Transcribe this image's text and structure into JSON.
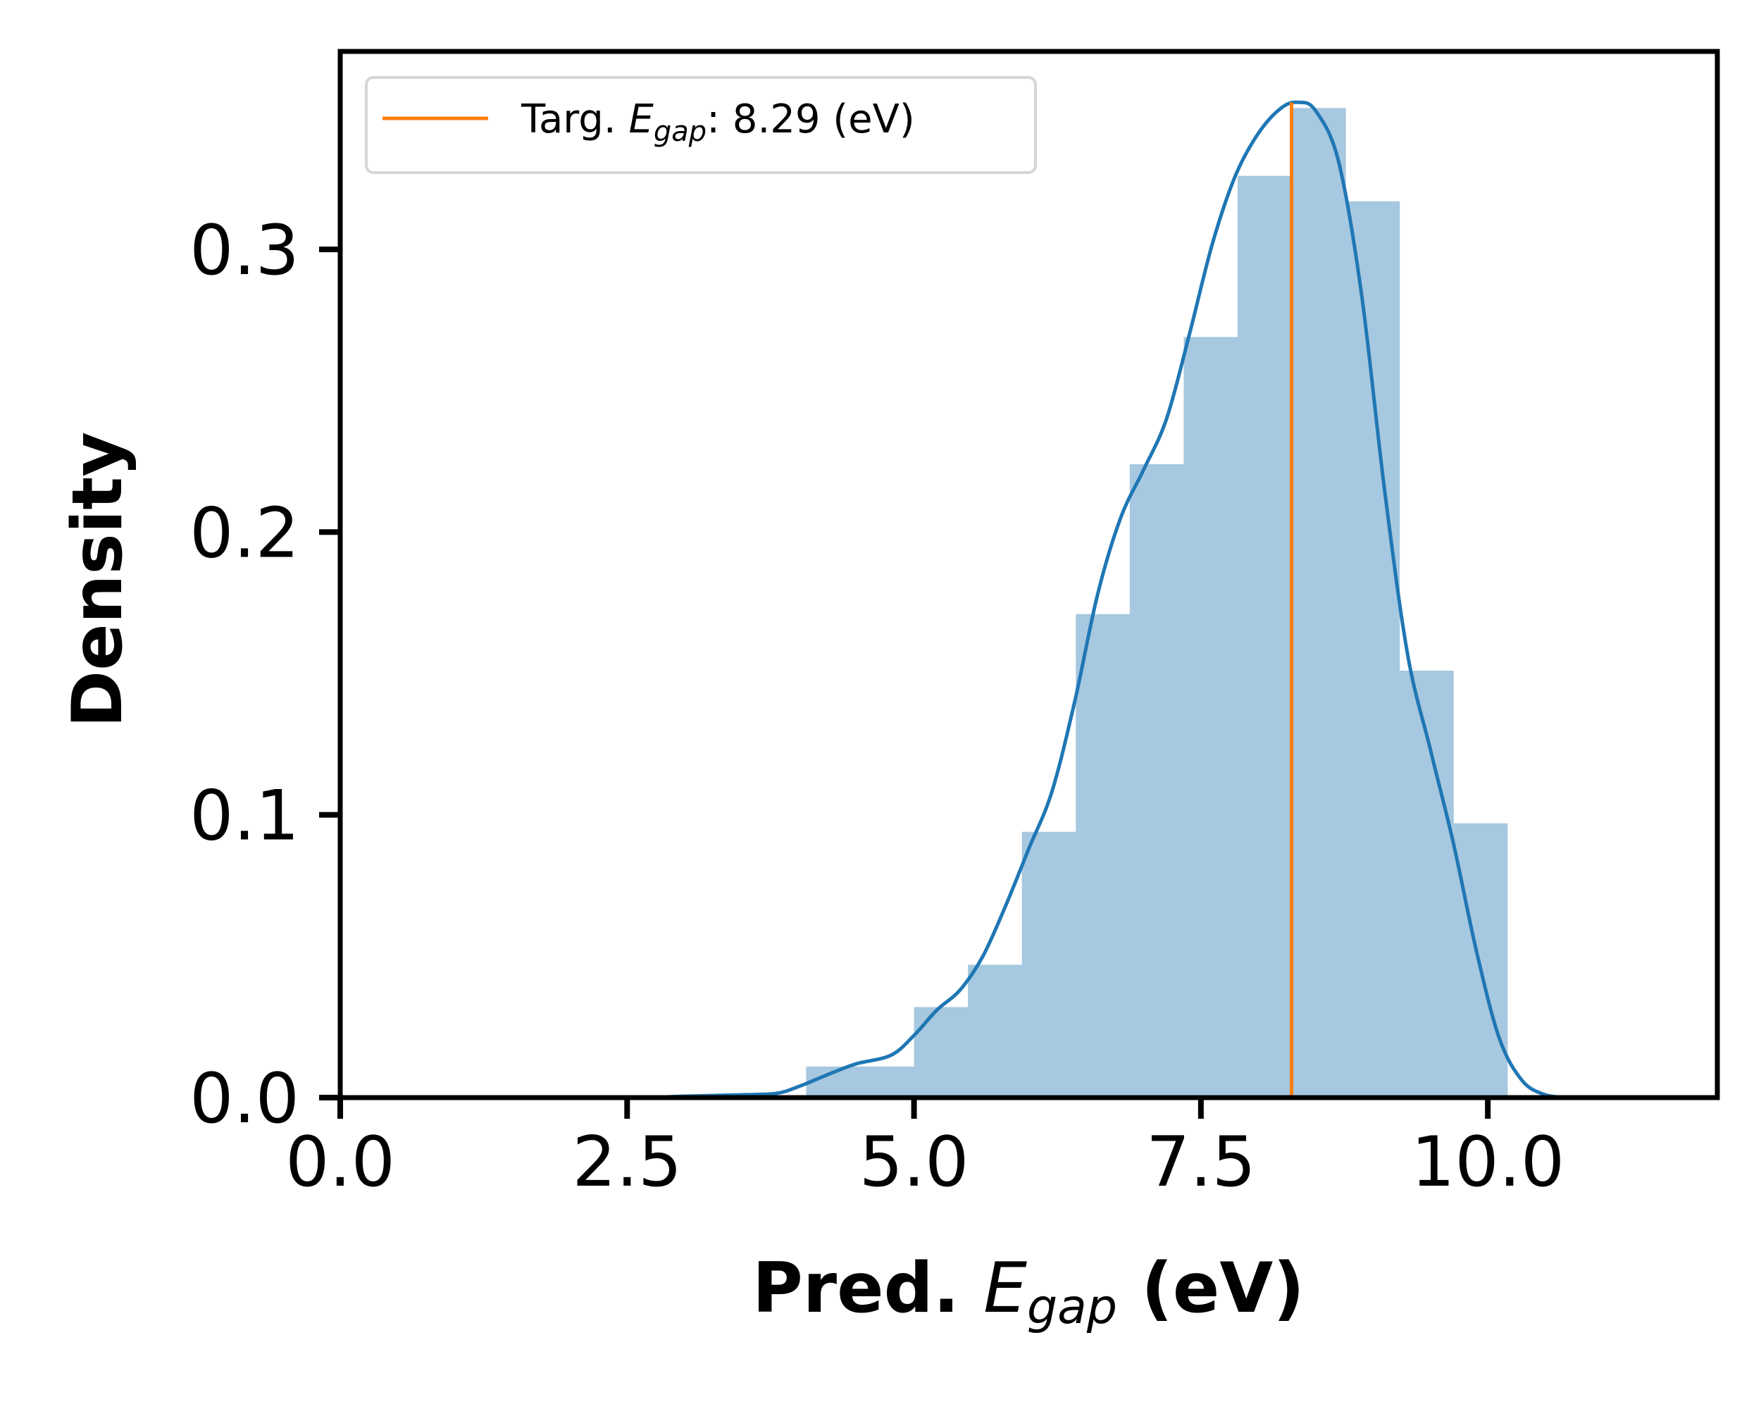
{
  "chart_data": {
    "type": "bar",
    "xlabel": {
      "prefix": "Pred. ",
      "var_main": "E",
      "var_sub": "gap",
      "suffix": " (eV)"
    },
    "ylabel": "Density",
    "xlim": [
      0,
      12
    ],
    "ylim": [
      0,
      0.37
    ],
    "xticks": [
      0,
      2.5,
      5,
      7.5,
      10
    ],
    "xtick_labels": [
      "0.0",
      "2.5",
      "5.0",
      "7.5",
      "10.0"
    ],
    "yticks": [
      0,
      0.1,
      0.2,
      0.3
    ],
    "ytick_labels": [
      "0.0",
      "0.1",
      "0.2",
      "0.3"
    ],
    "grid": false,
    "histogram": {
      "color": "#a6c8e0",
      "bins": [
        {
          "x0": 4.06,
          "x1": 4.53,
          "value": 0.011
        },
        {
          "x0": 4.53,
          "x1": 5.0,
          "value": 0.011
        },
        {
          "x0": 5.0,
          "x1": 5.47,
          "value": 0.032
        },
        {
          "x0": 5.47,
          "x1": 5.94,
          "value": 0.047
        },
        {
          "x0": 5.94,
          "x1": 6.41,
          "value": 0.094
        },
        {
          "x0": 6.41,
          "x1": 6.88,
          "value": 0.171
        },
        {
          "x0": 6.88,
          "x1": 7.35,
          "value": 0.224
        },
        {
          "x0": 7.35,
          "x1": 7.82,
          "value": 0.269
        },
        {
          "x0": 7.82,
          "x1": 8.29,
          "value": 0.326
        },
        {
          "x0": 8.29,
          "x1": 8.76,
          "value": 0.35
        },
        {
          "x0": 8.76,
          "x1": 9.23,
          "value": 0.317
        },
        {
          "x0": 9.23,
          "x1": 9.7,
          "value": 0.151
        },
        {
          "x0": 9.7,
          "x1": 10.17,
          "value": 0.097
        }
      ]
    },
    "kde": {
      "color": "#1f77b4",
      "x": [
        2.7,
        3.0,
        3.5,
        3.8,
        4.0,
        4.3,
        4.5,
        4.8,
        5.0,
        5.2,
        5.4,
        5.6,
        5.8,
        6.0,
        6.2,
        6.4,
        6.6,
        6.8,
        7.0,
        7.2,
        7.4,
        7.6,
        7.8,
        8.0,
        8.2,
        8.35,
        8.5,
        8.7,
        8.9,
        9.1,
        9.3,
        9.5,
        9.7,
        9.9,
        10.1,
        10.3,
        10.5,
        10.7
      ],
      "y": [
        0.0,
        0.0005,
        0.001,
        0.0015,
        0.004,
        0.009,
        0.012,
        0.015,
        0.022,
        0.031,
        0.038,
        0.05,
        0.068,
        0.088,
        0.108,
        0.14,
        0.178,
        0.205,
        0.222,
        0.24,
        0.27,
        0.302,
        0.326,
        0.341,
        0.35,
        0.352,
        0.349,
        0.331,
        0.284,
        0.215,
        0.157,
        0.123,
        0.09,
        0.052,
        0.021,
        0.006,
        0.001,
        0.0
      ]
    },
    "target_line": {
      "x": 8.29,
      "y_top": 0.352,
      "color": "#ff7f0e"
    },
    "legend": {
      "position": "top-left",
      "label_prefix": "Targ. ",
      "label_var_main": "E",
      "label_var_sub": "gap",
      "label_suffix": ": 8.29 (eV)"
    }
  }
}
